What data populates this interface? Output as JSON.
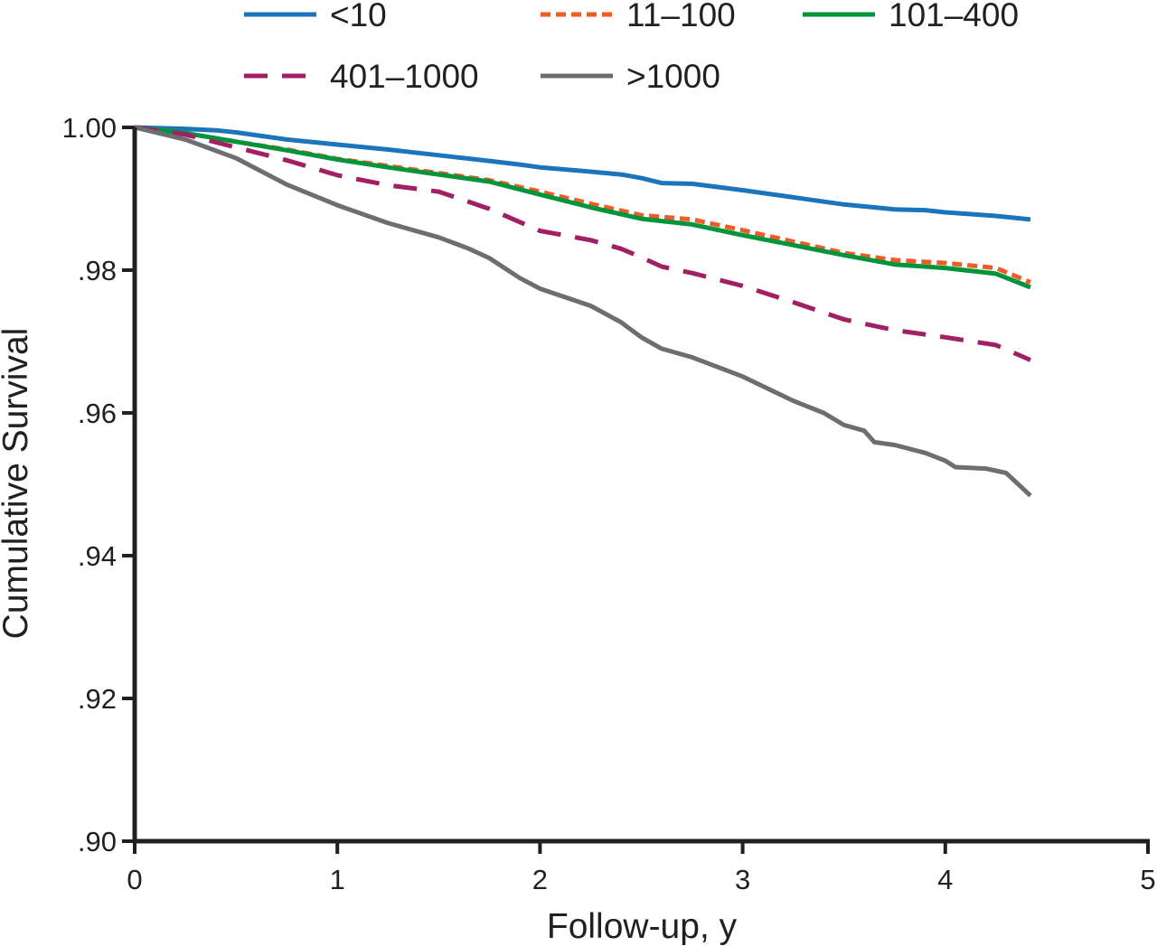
{
  "chart_data": {
    "type": "line",
    "title": "",
    "xlabel": "Follow-up, y",
    "ylabel": "Cumulative Survival",
    "xlim": [
      0,
      5
    ],
    "ylim": [
      0.9,
      1.0
    ],
    "x_ticks": [
      0,
      1,
      2,
      3,
      4,
      5
    ],
    "x_tick_labels": [
      "0",
      "1",
      "2",
      "3",
      "4",
      "5"
    ],
    "y_ticks": [
      1.0,
      0.98,
      0.96,
      0.94,
      0.92,
      0.9
    ],
    "y_tick_labels": [
      "1.00",
      ".98",
      ".96",
      ".94",
      ".92",
      ".90"
    ],
    "grid": false,
    "legend_position": "top",
    "series": [
      {
        "name": "<10",
        "color": "#1b75bc",
        "dash": "solid",
        "x": [
          0,
          0.25,
          0.4,
          0.5,
          0.75,
          1.0,
          1.25,
          1.5,
          1.75,
          1.9,
          2.0,
          2.25,
          2.4,
          2.5,
          2.6,
          2.75,
          3.0,
          3.25,
          3.5,
          3.75,
          3.9,
          4.0,
          4.25,
          4.42
        ],
        "y": [
          1.0,
          0.9998,
          0.9996,
          0.9993,
          0.9983,
          0.9976,
          0.9969,
          0.9961,
          0.9953,
          0.9948,
          0.9944,
          0.9938,
          0.9934,
          0.9929,
          0.9922,
          0.9921,
          0.9912,
          0.9902,
          0.9892,
          0.9885,
          0.9884,
          0.9881,
          0.9876,
          0.9871
        ]
      },
      {
        "name": "11–100",
        "color": "#f15a29",
        "dash": "short-dash",
        "x": [
          0,
          0.25,
          0.5,
          0.75,
          1.0,
          1.25,
          1.5,
          1.75,
          2.0,
          2.25,
          2.5,
          2.75,
          3.0,
          3.25,
          3.5,
          3.75,
          4.0,
          4.25,
          4.42
        ],
        "y": [
          1.0,
          0.9992,
          0.998,
          0.9969,
          0.9956,
          0.9946,
          0.9936,
          0.9926,
          0.991,
          0.9893,
          0.9877,
          0.9871,
          0.9856,
          0.984,
          0.9824,
          0.9814,
          0.981,
          0.9803,
          0.9783
        ]
      },
      {
        "name": "101–400",
        "color": "#00953a",
        "dash": "solid",
        "x": [
          0,
          0.25,
          0.5,
          0.75,
          1.0,
          1.25,
          1.5,
          1.75,
          2.0,
          2.25,
          2.5,
          2.75,
          3.0,
          3.25,
          3.5,
          3.75,
          4.0,
          4.25,
          4.42
        ],
        "y": [
          1.0,
          0.9992,
          0.998,
          0.9968,
          0.9955,
          0.9944,
          0.9934,
          0.9924,
          0.9906,
          0.9888,
          0.9872,
          0.9864,
          0.9849,
          0.9835,
          0.9821,
          0.9808,
          0.9803,
          0.9795,
          0.9776
        ]
      },
      {
        "name": "401–1000",
        "color": "#a21f63",
        "dash": "long-dash",
        "x": [
          0,
          0.25,
          0.5,
          0.75,
          1.0,
          1.25,
          1.5,
          1.75,
          2.0,
          2.25,
          2.4,
          2.5,
          2.6,
          2.75,
          3.0,
          3.25,
          3.5,
          3.75,
          4.0,
          4.25,
          4.42
        ],
        "y": [
          1.0,
          0.999,
          0.9972,
          0.9954,
          0.9933,
          0.9919,
          0.991,
          0.9886,
          0.9855,
          0.9842,
          0.983,
          0.9818,
          0.9805,
          0.9796,
          0.9778,
          0.9755,
          0.9731,
          0.9716,
          0.9706,
          0.9695,
          0.9674
        ]
      },
      {
        "name": ">1000",
        "color": "#6d6e71",
        "dash": "solid",
        "x": [
          0,
          0.25,
          0.5,
          0.75,
          1.0,
          1.25,
          1.5,
          1.65,
          1.75,
          1.9,
          2.0,
          2.25,
          2.4,
          2.5,
          2.6,
          2.75,
          3.0,
          3.25,
          3.4,
          3.5,
          3.6,
          3.65,
          3.75,
          3.9,
          4.0,
          4.05,
          4.2,
          4.25,
          4.3,
          4.42
        ],
        "y": [
          1.0,
          0.9983,
          0.9957,
          0.992,
          0.9891,
          0.9866,
          0.9846,
          0.983,
          0.9817,
          0.9789,
          0.9774,
          0.975,
          0.9727,
          0.9706,
          0.969,
          0.9678,
          0.9651,
          0.9617,
          0.96,
          0.9583,
          0.9575,
          0.9559,
          0.9555,
          0.9544,
          0.9533,
          0.9524,
          0.9522,
          0.9519,
          0.9516,
          0.9484
        ]
      }
    ]
  }
}
